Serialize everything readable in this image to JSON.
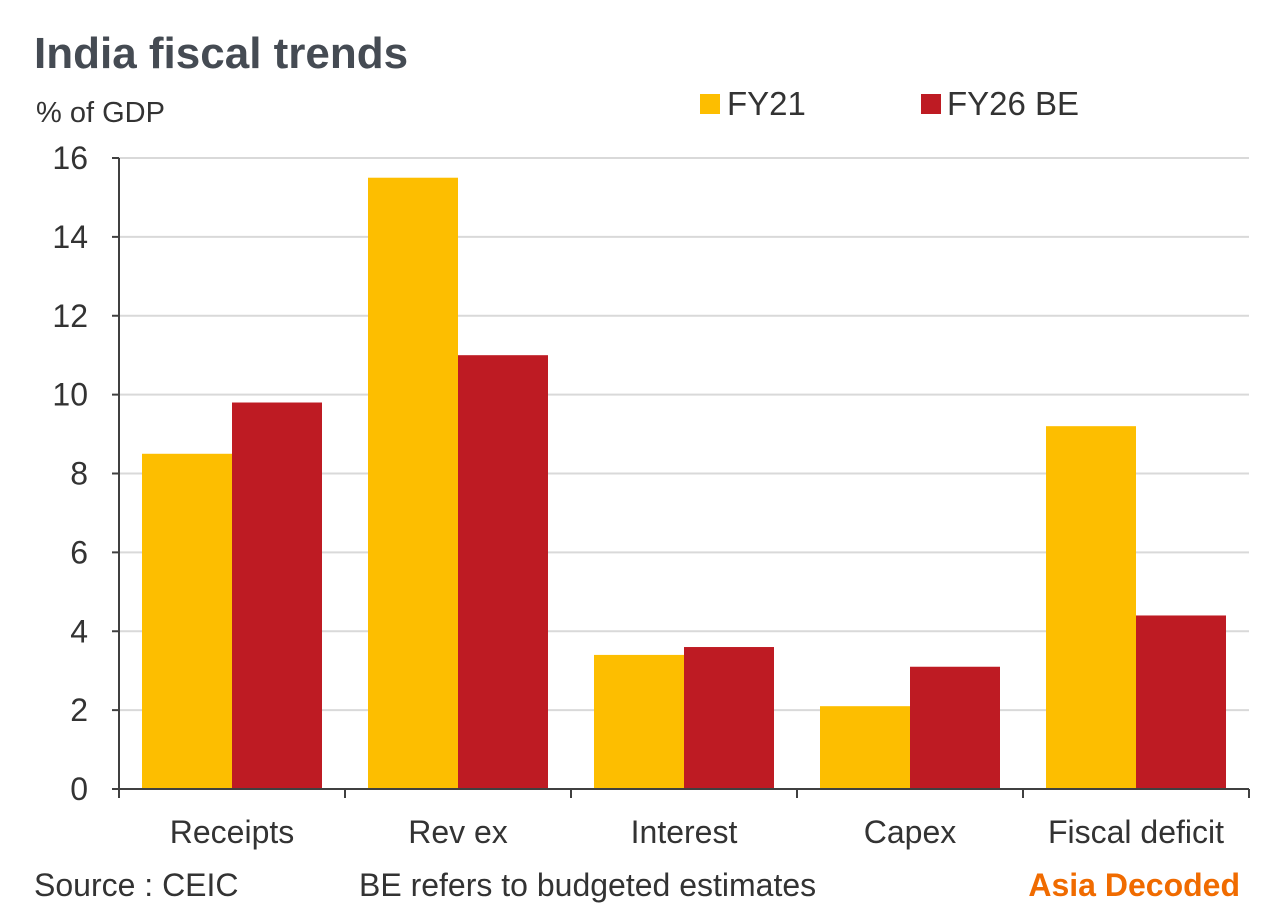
{
  "colors": {
    "fy21": "#FDBE00",
    "fy26": "#BE1B23",
    "grid": "#d9d9d9",
    "axis": "#404040",
    "brand": "#F06B00"
  },
  "footer": {
    "source": "Source : CEIC",
    "note": "BE refers to budgeted estimates",
    "brand": "Asia Decoded"
  },
  "chart_data": {
    "type": "bar",
    "title": "India fiscal trends",
    "ylabel": "% of GDP",
    "xlabel": "",
    "categories": [
      "Receipts",
      "Rev ex",
      "Interest",
      "Capex",
      "Fiscal deficit"
    ],
    "series": [
      {
        "name": "FY21",
        "values": [
          8.5,
          15.5,
          3.4,
          2.1,
          9.2
        ]
      },
      {
        "name": "FY26 BE",
        "values": [
          9.8,
          11.0,
          3.6,
          3.1,
          4.4
        ]
      }
    ],
    "ylim": [
      0,
      16
    ],
    "yticks": [
      "0",
      "2",
      "4",
      "6",
      "8",
      "10",
      "12",
      "14",
      "16"
    ],
    "grid": true,
    "legend_position": "top-right"
  }
}
